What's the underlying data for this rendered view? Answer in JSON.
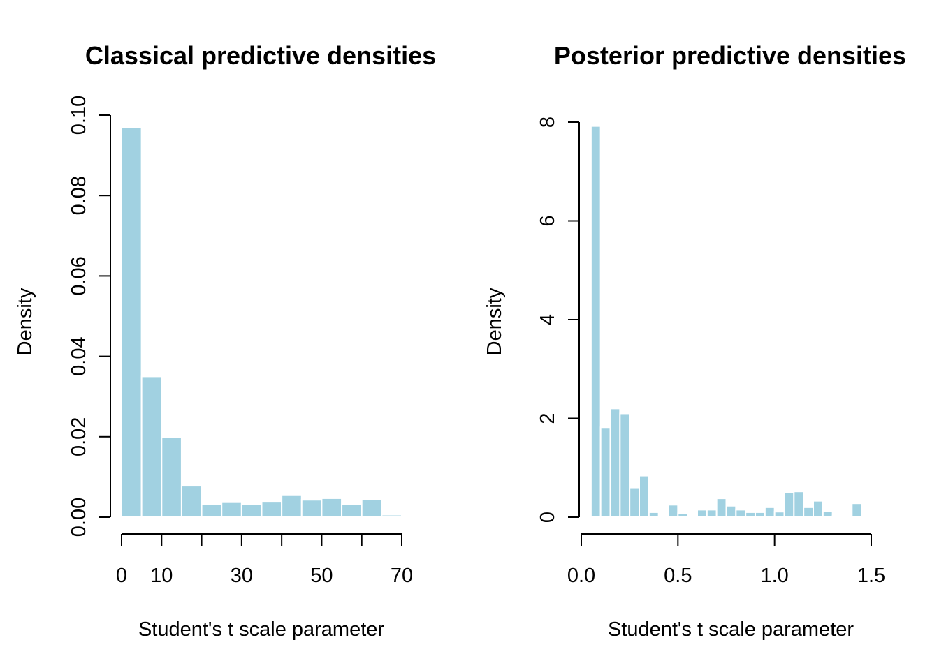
{
  "colors": {
    "bar_fill": "#a1d1e1",
    "bar_stroke": "#ffffff",
    "axis": "#000000"
  },
  "chart_data": [
    {
      "type": "bar",
      "title": "Classical predictive densities",
      "xlabel": "Student's t scale parameter",
      "ylabel": "Density",
      "xlim": [
        0,
        70
      ],
      "ylim": [
        0,
        0.1
      ],
      "x_ticks": [
        0,
        10,
        20,
        30,
        40,
        50,
        60,
        70
      ],
      "x_tick_labels": [
        "0",
        "10",
        "",
        "30",
        "",
        "50",
        "",
        "70"
      ],
      "y_ticks": [
        0,
        0.02,
        0.04,
        0.06,
        0.08,
        0.1
      ],
      "y_tick_labels": [
        "0.00",
        "0.02",
        "0.04",
        "0.06",
        "0.08",
        "0.10"
      ],
      "bin_edges": [
        0,
        5,
        10,
        15,
        20,
        25,
        30,
        35,
        40,
        45,
        50,
        55,
        60,
        65,
        70
      ],
      "values": [
        0.097,
        0.035,
        0.0198,
        0.0078,
        0.0033,
        0.0037,
        0.0032,
        0.0038,
        0.0056,
        0.0043,
        0.0047,
        0.0032,
        0.0044,
        0.0006
      ],
      "grid": false,
      "legend": "none"
    },
    {
      "type": "bar",
      "title": "Posterior predictive densities",
      "xlabel": "Student's t scale parameter",
      "ylabel": "Density",
      "xlim": [
        0,
        1.5
      ],
      "ylim": [
        0,
        8
      ],
      "x_ticks": [
        0,
        0.5,
        1.0,
        1.5
      ],
      "x_tick_labels": [
        "0.0",
        "0.5",
        "1.0",
        "1.5"
      ],
      "y_ticks": [
        0,
        2,
        4,
        6,
        8
      ],
      "y_tick_labels": [
        "0",
        "2",
        "4",
        "6",
        "8"
      ],
      "bin_edges": [
        0.05,
        0.1,
        0.15,
        0.2,
        0.25,
        0.3,
        0.35,
        0.4,
        0.45,
        0.5,
        0.55,
        0.6,
        0.65,
        0.7,
        0.75,
        0.8,
        0.85,
        0.9,
        0.95,
        1.0,
        1.05,
        1.1,
        1.15,
        1.2,
        1.25,
        1.3,
        1.35,
        1.4,
        1.45
      ],
      "values": [
        7.92,
        1.82,
        2.2,
        2.1,
        0.6,
        0.84,
        0.1,
        0.0,
        0.25,
        0.08,
        0.03,
        0.15,
        0.15,
        0.38,
        0.23,
        0.15,
        0.1,
        0.1,
        0.2,
        0.11,
        0.5,
        0.52,
        0.2,
        0.33,
        0.12,
        0.03,
        0.0,
        0.28
      ],
      "grid": false,
      "legend": "none"
    }
  ]
}
